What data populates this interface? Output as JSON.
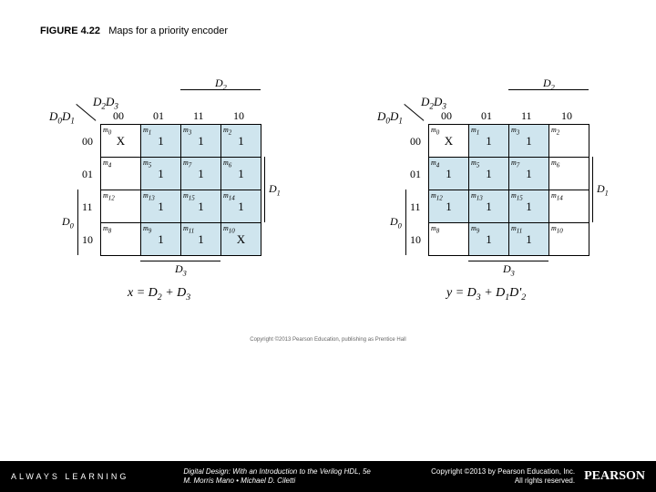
{
  "figure": {
    "number": "FIGURE 4.22",
    "caption": "Maps for a priority encoder"
  },
  "maps": [
    {
      "axis_top": "D<sub>2</sub>D<sub>3</sub>",
      "axis_side": "D<sub>0</sub>D<sub>1</sub>",
      "col_heads": [
        "00",
        "01",
        "11",
        "10"
      ],
      "row_heads": [
        "00",
        "01",
        "11",
        "10"
      ],
      "top_bracket": "D<sub>2</sub>",
      "right_bracket": "D<sub>1</sub>",
      "left_bracket": "D<sub>0</sub>",
      "bottom_bracket": "D<sub>3</sub>",
      "equation": "x = D<sub>2</sub> + D<sub>3</sub>",
      "cells": [
        [
          {
            "m": "m<sub>0</sub>",
            "v": "X",
            "s": 0
          },
          {
            "m": "m<sub>1</sub>",
            "v": "1",
            "s": 1
          },
          {
            "m": "m<sub>3</sub>",
            "v": "1",
            "s": 1
          },
          {
            "m": "m<sub>2</sub>",
            "v": "1",
            "s": 1
          }
        ],
        [
          {
            "m": "m<sub>4</sub>",
            "v": "",
            "s": 0
          },
          {
            "m": "m<sub>5</sub>",
            "v": "1",
            "s": 1
          },
          {
            "m": "m<sub>7</sub>",
            "v": "1",
            "s": 1
          },
          {
            "m": "m<sub>6</sub>",
            "v": "1",
            "s": 1
          }
        ],
        [
          {
            "m": "m<sub>12</sub>",
            "v": "",
            "s": 0
          },
          {
            "m": "m<sub>13</sub>",
            "v": "1",
            "s": 1
          },
          {
            "m": "m<sub>15</sub>",
            "v": "1",
            "s": 1
          },
          {
            "m": "m<sub>14</sub>",
            "v": "1",
            "s": 1
          }
        ],
        [
          {
            "m": "m<sub>8</sub>",
            "v": "",
            "s": 0
          },
          {
            "m": "m<sub>9</sub>",
            "v": "1",
            "s": 1
          },
          {
            "m": "m<sub>11</sub>",
            "v": "1",
            "s": 1
          },
          {
            "m": "m<sub>10</sub>",
            "v": "X",
            "s": 1
          }
        ]
      ]
    },
    {
      "axis_top": "D<sub>2</sub>D<sub>3</sub>",
      "axis_side": "D<sub>0</sub>D<sub>1</sub>",
      "col_heads": [
        "00",
        "01",
        "11",
        "10"
      ],
      "row_heads": [
        "00",
        "01",
        "11",
        "10"
      ],
      "top_bracket": "D<sub>2</sub>",
      "right_bracket": "D<sub>1</sub>",
      "left_bracket": "D<sub>0</sub>",
      "bottom_bracket": "D<sub>3</sub>",
      "equation": "y = D<sub>3</sub> + D<sub>1</sub>D'<sub>2</sub>",
      "cells": [
        [
          {
            "m": "m<sub>0</sub>",
            "v": "X",
            "s": 0
          },
          {
            "m": "m<sub>1</sub>",
            "v": "1",
            "s": 1
          },
          {
            "m": "m<sub>3</sub>",
            "v": "1",
            "s": 1
          },
          {
            "m": "m<sub>2</sub>",
            "v": "",
            "s": 0
          }
        ],
        [
          {
            "m": "m<sub>4</sub>",
            "v": "1",
            "s": 1
          },
          {
            "m": "m<sub>5</sub>",
            "v": "1",
            "s": 1
          },
          {
            "m": "m<sub>7</sub>",
            "v": "1",
            "s": 1
          },
          {
            "m": "m<sub>6</sub>",
            "v": "",
            "s": 0
          }
        ],
        [
          {
            "m": "m<sub>12</sub>",
            "v": "1",
            "s": 1
          },
          {
            "m": "m<sub>13</sub>",
            "v": "1",
            "s": 1
          },
          {
            "m": "m<sub>15</sub>",
            "v": "1",
            "s": 1
          },
          {
            "m": "m<sub>14</sub>",
            "v": "",
            "s": 0
          }
        ],
        [
          {
            "m": "m<sub>8</sub>",
            "v": "",
            "s": 0
          },
          {
            "m": "m<sub>9</sub>",
            "v": "1",
            "s": 1
          },
          {
            "m": "m<sub>11</sub>",
            "v": "1",
            "s": 1
          },
          {
            "m": "m<sub>10</sub>",
            "v": "",
            "s": 0
          }
        ]
      ]
    }
  ],
  "micro_copy": "Copyright ©2013 Pearson Education, publishing as Prentice Hall",
  "footer": {
    "always": "ALWAYS LEARNING",
    "book_title": "Digital Design: With an Introduction to the Verilog HDL, 5e",
    "authors": "M. Morris Mano • Michael D. Ciletti",
    "copyright": "Copyright ©2013 by Pearson Education, Inc.",
    "rights": "All rights reserved.",
    "brand": "PEARSON"
  }
}
